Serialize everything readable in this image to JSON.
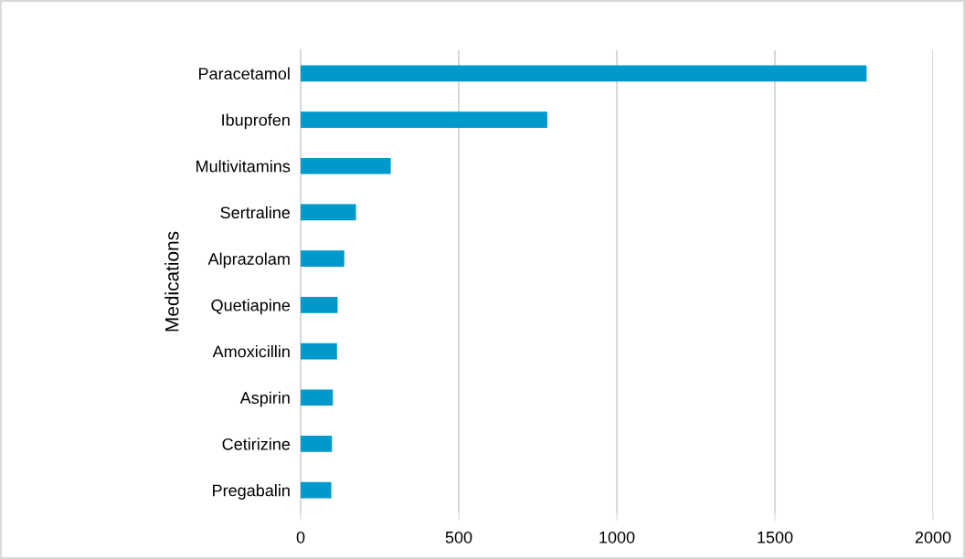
{
  "chart_data": {
    "type": "bar",
    "orientation": "horizontal",
    "ylabel": "Medications",
    "categories": [
      "Paracetamol",
      "Ibuprofen",
      "Multivitamins",
      "Sertraline",
      "Alprazolam",
      "Quetiapine",
      "Amoxicillin",
      "Aspirin",
      "Cetirizine",
      "Pregabalin"
    ],
    "values": [
      1790,
      780,
      285,
      175,
      138,
      117,
      115,
      102,
      99,
      97
    ],
    "color": "#0099cc",
    "xlim": [
      0,
      2000
    ],
    "xticks": [
      0,
      500,
      1000,
      1500,
      2000
    ],
    "grid": "x",
    "legend": false
  }
}
